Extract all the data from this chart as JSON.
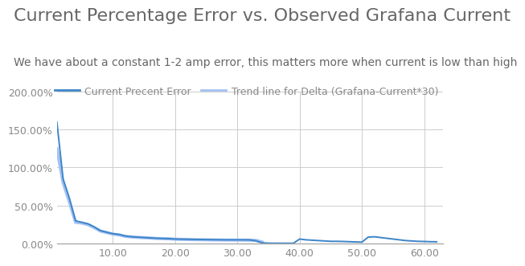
{
  "title": "Current Percentage Error vs. Observed Grafana Current",
  "subtitle": "We have about a constant 1-2 amp error, this matters more when current is low than high",
  "legend_line1": "Current Precent Error",
  "legend_line2": "Trend line for Delta (Grafana-Current*30)",
  "line1_color": "#3d85c8",
  "line2_color": "#a4c2f4",
  "background_color": "#ffffff",
  "grid_color": "#cccccc",
  "ylim": [
    0.0,
    2.0
  ],
  "xlim": [
    1,
    63
  ],
  "yticks": [
    0.0,
    0.5,
    1.0,
    1.5,
    2.0
  ],
  "ytick_labels": [
    "0.00%",
    "50.00%",
    "100.00%",
    "150.00%",
    "200.00%"
  ],
  "xticks": [
    10,
    20,
    30,
    40,
    50,
    60
  ],
  "xtick_labels": [
    "10.00",
    "20.00",
    "30.00",
    "40.00",
    "50.00",
    "60.00"
  ],
  "main_x": [
    1,
    2,
    3,
    4,
    5,
    6,
    7,
    8,
    9,
    10,
    11,
    12,
    13,
    14,
    15,
    16,
    17,
    18,
    19,
    20,
    21,
    22,
    23,
    24,
    25,
    26,
    27,
    28,
    29,
    30,
    31,
    32,
    33,
    34,
    35,
    36,
    37,
    38,
    39,
    40,
    41,
    42,
    43,
    44,
    45,
    46,
    47,
    48,
    49,
    50,
    51,
    52,
    53,
    54,
    55,
    56,
    57,
    58,
    59,
    60,
    61,
    62
  ],
  "main_y": [
    1.6,
    0.85,
    0.6,
    0.3,
    0.28,
    0.26,
    0.22,
    0.17,
    0.15,
    0.13,
    0.12,
    0.1,
    0.09,
    0.085,
    0.08,
    0.075,
    0.07,
    0.068,
    0.065,
    0.06,
    0.058,
    0.057,
    0.055,
    0.054,
    0.053,
    0.052,
    0.051,
    0.05,
    0.05,
    0.05,
    0.05,
    0.049,
    0.035,
    0.01,
    0.006,
    0.005,
    0.005,
    0.005,
    0.005,
    0.06,
    0.05,
    0.045,
    0.04,
    0.035,
    0.03,
    0.03,
    0.028,
    0.025,
    0.022,
    0.02,
    0.085,
    0.09,
    0.08,
    0.07,
    0.06,
    0.05,
    0.04,
    0.035,
    0.03,
    0.028,
    0.025,
    0.024
  ],
  "trend_x": [
    1,
    2,
    3,
    4,
    5,
    6,
    7,
    8,
    9,
    10,
    11,
    12,
    13,
    14,
    15,
    16,
    17,
    18,
    19,
    20,
    21,
    22,
    23,
    24,
    25,
    26,
    27,
    28,
    29,
    30,
    31,
    32,
    33,
    34
  ],
  "trend_y": [
    1.25,
    0.8,
    0.55,
    0.28,
    0.27,
    0.25,
    0.21,
    0.165,
    0.145,
    0.125,
    0.115,
    0.095,
    0.088,
    0.082,
    0.078,
    0.073,
    0.068,
    0.065,
    0.063,
    0.058,
    0.056,
    0.054,
    0.052,
    0.051,
    0.05,
    0.049,
    0.048,
    0.047,
    0.047,
    0.046,
    0.046,
    0.045,
    0.043,
    0.02
  ],
  "title_fontsize": 16,
  "subtitle_fontsize": 10,
  "tick_fontsize": 9,
  "legend_fontsize": 9,
  "title_color": "#666666",
  "subtitle_color": "#666666",
  "tick_color": "#888888"
}
